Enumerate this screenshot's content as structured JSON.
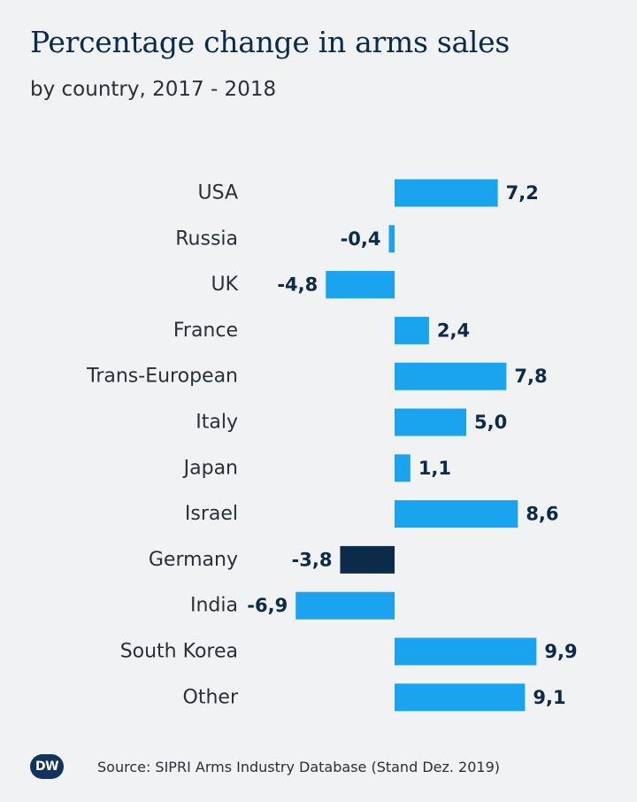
{
  "header": {
    "title": "Percentage change in arms sales",
    "subtitle": "by country, 2017 - 2018"
  },
  "footer": {
    "logo_text": "DW",
    "source": "Source: SIPRI Arms Industry Database (Stand Dez. 2019)"
  },
  "colors": {
    "bar": "#1aa3ef",
    "highlight_bar": "#0c2a4a",
    "value_text": "#0c2a4a",
    "label_text": "#2b2f36"
  },
  "chart_data": {
    "type": "bar",
    "orientation": "horizontal",
    "title": "Percentage change in arms sales",
    "subtitle": "by country, 2017 - 2018",
    "categories": [
      "USA",
      "Russia",
      "UK",
      "France",
      "Trans-European",
      "Italy",
      "Japan",
      "Israel",
      "Germany",
      "India",
      "South Korea",
      "Other"
    ],
    "values": [
      7.2,
      -0.4,
      -4.8,
      2.4,
      7.8,
      5.0,
      1.1,
      8.6,
      -3.8,
      -6.9,
      9.9,
      9.1
    ],
    "value_labels": [
      "7,2",
      "-0,4",
      "-4,8",
      "2,4",
      "7,8",
      "5,0",
      "1,1",
      "8,6",
      "-3,8",
      "-6,9",
      "9,9",
      "9,1"
    ],
    "highlight": "Germany",
    "xlim": [
      -6.9,
      9.9
    ],
    "grid": false,
    "legend": "none"
  }
}
